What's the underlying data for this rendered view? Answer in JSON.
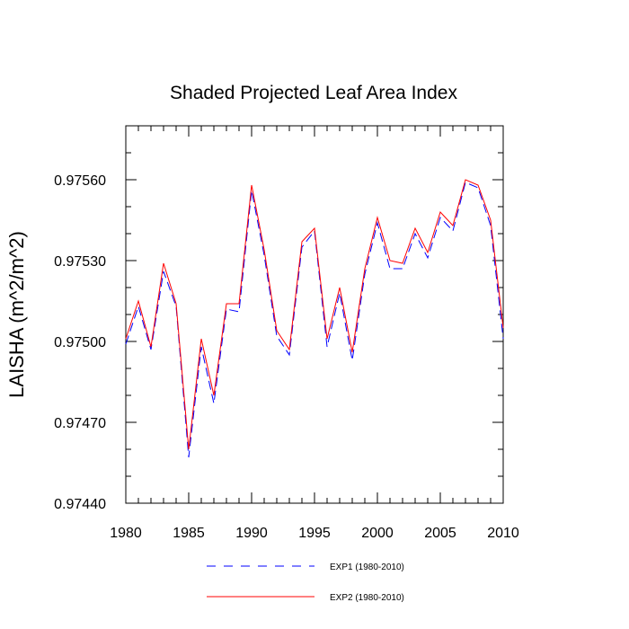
{
  "chart_data": {
    "type": "line",
    "title": "Shaded Projected Leaf Area Index",
    "xlabel": "",
    "ylabel": "LAISHA  (m^2/m^2)",
    "xlim": [
      1980,
      2010
    ],
    "ylim": [
      0.9744,
      0.9758
    ],
    "xticks": [
      1980,
      1985,
      1990,
      1995,
      2000,
      2005,
      2010
    ],
    "yticks": [
      0.9744,
      0.9747,
      0.975,
      0.9753,
      0.9756
    ],
    "ytick_labels": [
      "0.97440",
      "0.97470",
      "0.97500",
      "0.97530",
      "0.97560"
    ],
    "x": [
      1980,
      1981,
      1982,
      1983,
      1984,
      1985,
      1986,
      1987,
      1988,
      1989,
      1990,
      1991,
      1992,
      1993,
      1994,
      1995,
      1996,
      1997,
      1998,
      1999,
      2000,
      2001,
      2002,
      2003,
      2004,
      2005,
      2006,
      2007,
      2008,
      2009,
      2010
    ],
    "series": [
      {
        "name": "EXP1 (1980-2010)",
        "color": "#0000ff",
        "dash": "dashed",
        "values": [
          0.97499,
          0.97513,
          0.97497,
          0.97526,
          0.97513,
          0.97457,
          0.97498,
          0.97477,
          0.97512,
          0.97511,
          0.97556,
          0.97532,
          0.97502,
          0.97495,
          0.97535,
          0.97541,
          0.97498,
          0.97518,
          0.97493,
          0.97525,
          0.97544,
          0.97527,
          0.97527,
          0.9754,
          0.97531,
          0.97546,
          0.97541,
          0.97559,
          0.97557,
          0.97543,
          0.97501
        ]
      },
      {
        "name": "EXP2 (1980-2010)",
        "color": "#ff0000",
        "dash": "solid",
        "values": [
          0.97501,
          0.97515,
          0.97498,
          0.97529,
          0.97514,
          0.9746,
          0.97501,
          0.9748,
          0.97514,
          0.97514,
          0.97558,
          0.97534,
          0.97504,
          0.97497,
          0.97537,
          0.97542,
          0.97501,
          0.9752,
          0.97496,
          0.97527,
          0.97546,
          0.9753,
          0.97529,
          0.97542,
          0.97533,
          0.97548,
          0.97543,
          0.9756,
          0.97558,
          0.97545,
          0.97505
        ]
      }
    ],
    "grid": false,
    "legend": "bottom-center"
  }
}
